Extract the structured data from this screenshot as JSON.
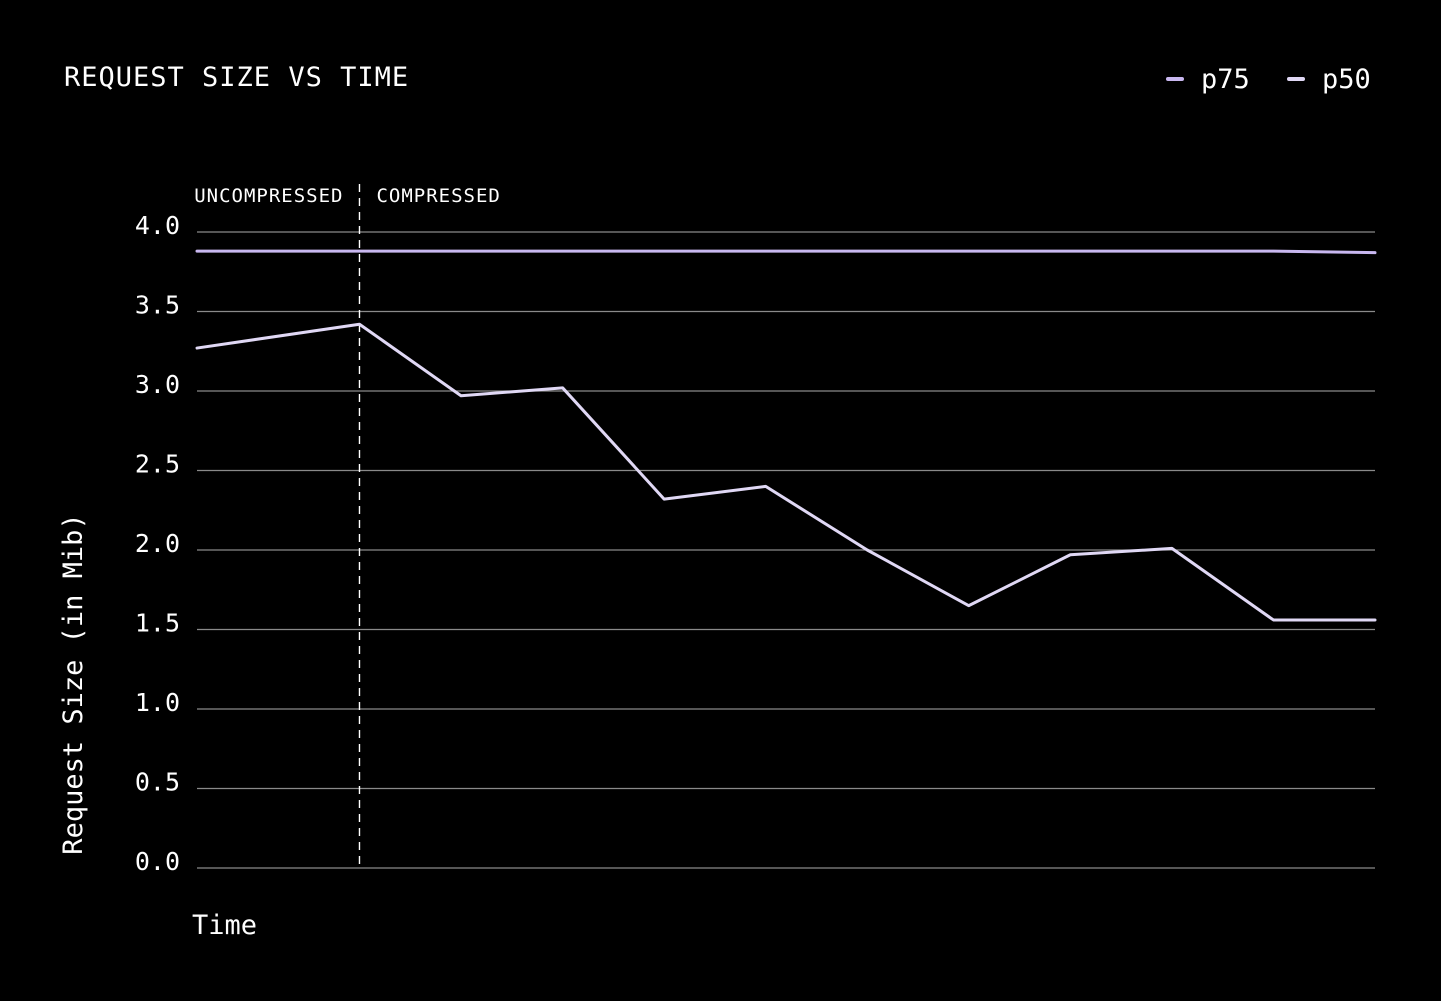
{
  "chart_data": {
    "type": "line",
    "title": "REQUEST SIZE VS TIME",
    "xlabel": "Time",
    "ylabel": "Request Size (in Mib)",
    "ylim": [
      0,
      4
    ],
    "yticks": [
      "0.0",
      "0.5",
      "1.0",
      "1.5",
      "2.0",
      "2.5",
      "3.0",
      "3.5",
      "4.0"
    ],
    "grid": true,
    "legend_position": "top-right",
    "regions": [
      "UNCOMPRESSED",
      "COMPRESSED"
    ],
    "divider_x": 1.6,
    "x": [
      0,
      1.6,
      2.6,
      3.6,
      4.6,
      5.6,
      6.6,
      7.6,
      8.6,
      9.6,
      10.6,
      11.6
    ],
    "xlim": [
      0,
      11.6
    ],
    "series": [
      {
        "name": "p75",
        "color": "#c9b8f0",
        "values": [
          3.88,
          3.88,
          3.88,
          3.88,
          3.88,
          3.88,
          3.88,
          3.88,
          3.88,
          3.88,
          3.88,
          3.87
        ]
      },
      {
        "name": "p50",
        "color": "#e0d8f5",
        "values": [
          3.27,
          3.42,
          2.97,
          3.02,
          2.32,
          2.4,
          2.0,
          1.65,
          1.97,
          2.01,
          1.56,
          1.56
        ]
      }
    ]
  }
}
